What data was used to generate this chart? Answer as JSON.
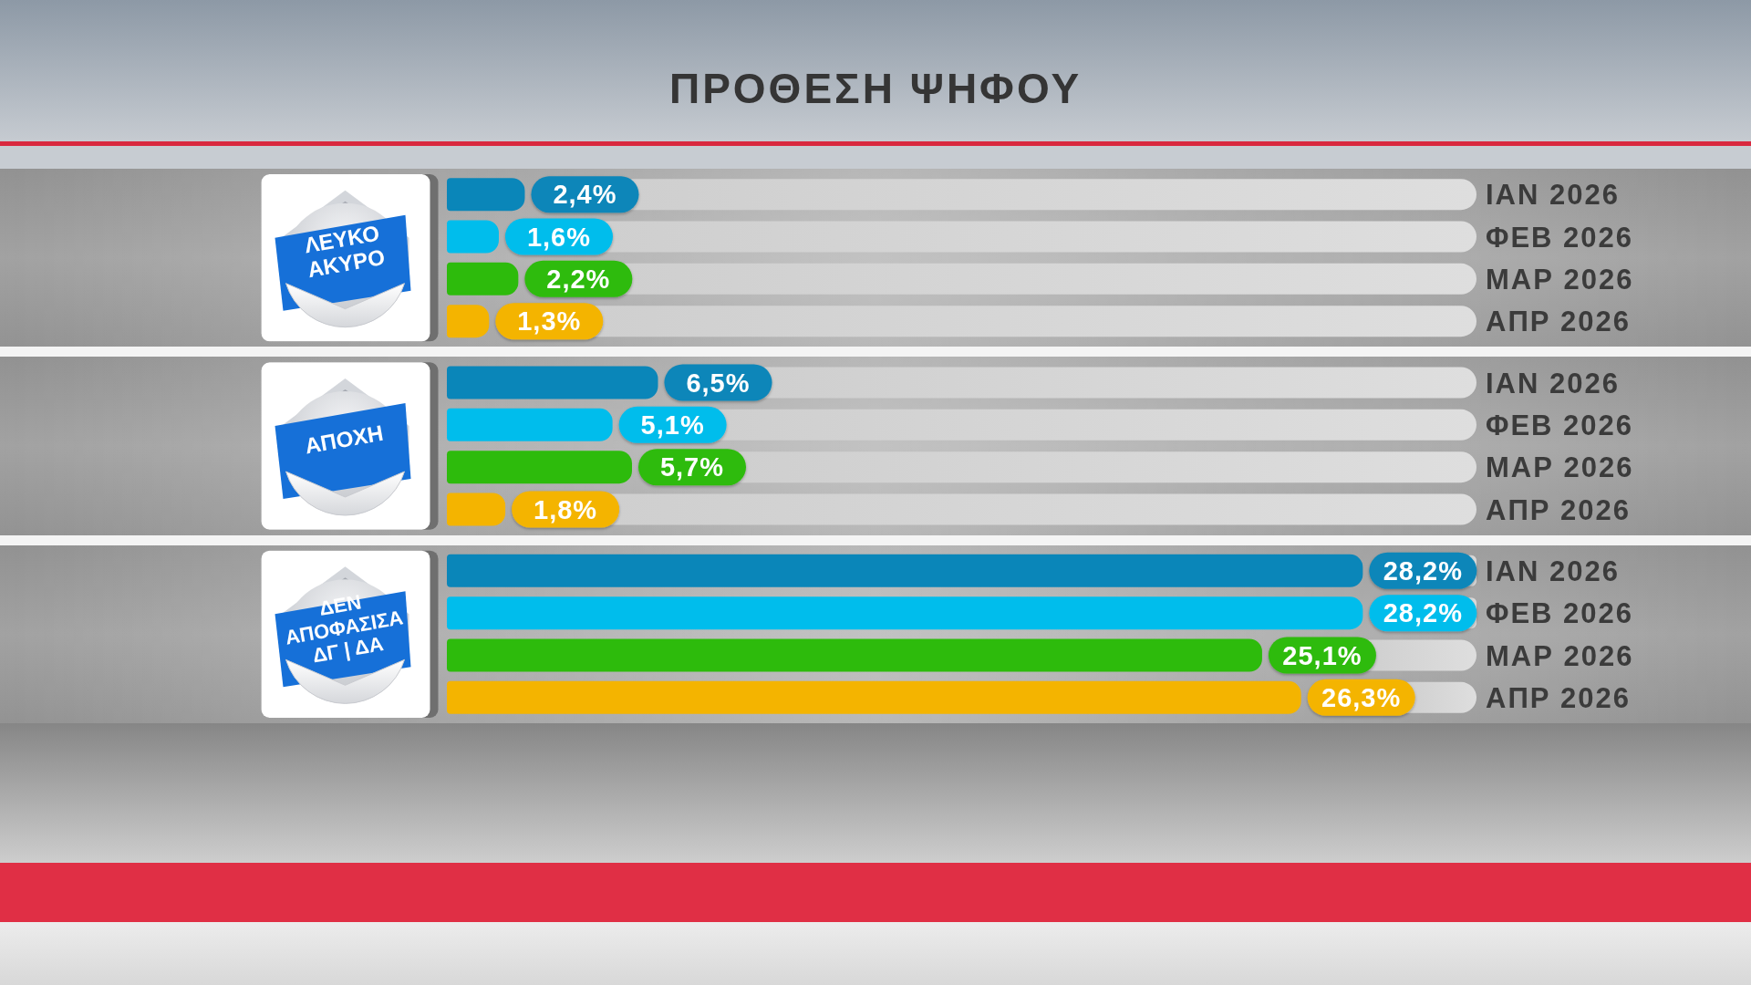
{
  "chart_data": {
    "type": "bar",
    "orientation": "horizontal",
    "title": "ΠΡΟΘΕΣΗ ΨΗΦΟΥ",
    "categories": [
      "ΛΕΥΚΟ ΑΚΥΡΟ",
      "ΑΠΟΧΗ",
      "ΔΕΝ ΑΠΟΦΑΣΙΣΑ ΔΓ | ΔΑ"
    ],
    "series": [
      {
        "name": "ΙΑΝ 2026",
        "color": "#0a86b9",
        "values": [
          2.4,
          6.5,
          28.2
        ],
        "value_labels": [
          "2,4%",
          "6,5%",
          "28,2%"
        ]
      },
      {
        "name": "ΦΕΒ 2026",
        "color": "#00bdec",
        "values": [
          1.6,
          5.1,
          28.2
        ],
        "value_labels": [
          "1,6%",
          "5,1%",
          "28,2%"
        ]
      },
      {
        "name": "ΜΑΡ 2026",
        "color": "#2dbb0c",
        "values": [
          2.2,
          5.7,
          25.1
        ],
        "value_labels": [
          "2,2%",
          "5,7%",
          "25,1%"
        ]
      },
      {
        "name": "ΑΠΡ 2026",
        "color": "#f4b400",
        "values": [
          1.3,
          1.8,
          26.3
        ],
        "value_labels": [
          "1,3%",
          "1,8%",
          "26,3%"
        ]
      }
    ],
    "xlim": [
      0,
      31.7
    ],
    "tick_labels": "y",
    "legend": "right"
  }
}
